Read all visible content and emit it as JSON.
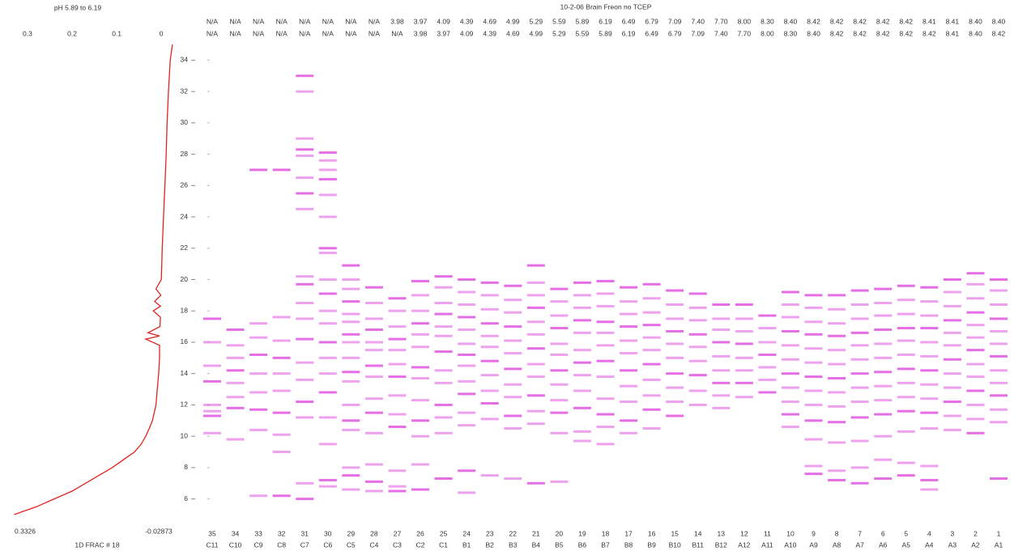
{
  "chart_data": [
    {
      "type": "line",
      "title": "pH 5.89 to 6.19",
      "xlabel": "1D FRAC # 18",
      "color": "#e0241f",
      "xlim": [
        0.3326,
        -0.02873
      ],
      "xticks": [
        0.3,
        0.2,
        0.1,
        0
      ],
      "ylim": [
        5,
        35
      ],
      "positions": [
        5,
        5.5,
        6,
        6.5,
        7,
        7.5,
        8,
        8.5,
        9,
        9.5,
        10,
        10.5,
        11,
        12,
        13,
        14,
        15,
        15.8,
        16.2,
        16.4,
        16.6,
        17,
        17.6,
        18,
        18.3,
        18.6,
        19,
        19.4,
        20,
        22,
        24,
        26,
        28,
        30,
        32,
        34,
        35
      ],
      "values": [
        0.33,
        0.28,
        0.24,
        0.2,
        0.17,
        0.14,
        0.11,
        0.085,
        0.06,
        0.045,
        0.035,
        0.027,
        0.02,
        0.012,
        0.009,
        0.006,
        0.004,
        0.004,
        0.035,
        0.004,
        0.03,
        0.003,
        0.002,
        0.018,
        0.002,
        0.015,
        0.001,
        0.012,
        0.0,
        -0.002,
        -0.005,
        -0.008,
        -0.011,
        -0.013,
        -0.016,
        -0.02,
        -0.025
      ]
    },
    {
      "type": "band-map",
      "title": "10-2-06 Brain Freon no TCEP",
      "color": "#e055e0",
      "ylim": [
        5,
        35
      ],
      "yticks": [
        6,
        8,
        10,
        12,
        14,
        16,
        18,
        20,
        22,
        24,
        26,
        28,
        30,
        32,
        34
      ],
      "lanes": [
        35,
        34,
        33,
        32,
        31,
        30,
        29,
        28,
        27,
        26,
        25,
        24,
        23,
        22,
        21,
        20,
        19,
        18,
        17,
        16,
        15,
        14,
        13,
        12,
        11,
        10,
        9,
        8,
        7,
        6,
        5,
        4,
        3,
        2,
        1
      ],
      "wells": [
        "C11",
        "C10",
        "C9",
        "C8",
        "C7",
        "C6",
        "C5",
        "C4",
        "C3",
        "C2",
        "C1",
        "B1",
        "B2",
        "B3",
        "B4",
        "B5",
        "B6",
        "B7",
        "B8",
        "B9",
        "B10",
        "B11",
        "B12",
        "A12",
        "A11",
        "A10",
        "A9",
        "A8",
        "A7",
        "A6",
        "A5",
        "A4",
        "A3",
        "A2",
        "A1"
      ],
      "ph_top": [
        "N/A",
        "N/A",
        "N/A",
        "N/A",
        "N/A",
        "N/A",
        "N/A",
        "N/A",
        "3.98",
        "3.97",
        "4.09",
        "4.39",
        "4.69",
        "4.99",
        "5.29",
        "5.59",
        "5.89",
        "6.19",
        "6.49",
        "6.79",
        "7.09",
        "7.40",
        "7.70",
        "8.00",
        "8.30",
        "8.40",
        "8.42",
        "8.42",
        "8.42",
        "8.42",
        "8.42",
        "8.41",
        "8.41",
        "8.40",
        "8.40"
      ],
      "ph_bottom": [
        "N/A",
        "N/A",
        "N/A",
        "N/A",
        "N/A",
        "N/A",
        "N/A",
        "N/A",
        "N/A",
        "3.98",
        "3.97",
        "4.09",
        "4.39",
        "4.69",
        "4.99",
        "5.29",
        "5.59",
        "5.89",
        "6.19",
        "6.49",
        "6.79",
        "7.09",
        "7.40",
        "7.70",
        "8.00",
        "8.30",
        "8.40",
        "8.42",
        "8.42",
        "8.42",
        "8.42",
        "8.42",
        "8.41",
        "8.40",
        "8.42"
      ],
      "bands": [
        [
          17.5,
          16,
          14.5,
          13.5,
          12,
          11.6,
          11.3,
          10.2
        ],
        [
          16.8,
          15.8,
          15,
          14.2,
          13.4,
          12.5,
          11.8,
          9.8
        ],
        [
          27,
          17.2,
          16.3,
          15.2,
          14,
          12.8,
          11.7,
          10.4,
          6.2
        ],
        [
          27,
          17.6,
          16.1,
          15,
          14,
          12.9,
          11.5,
          10.1,
          9,
          6.2
        ],
        [
          33,
          32,
          29,
          28.3,
          27.9,
          26.5,
          25.5,
          24.5,
          20.2,
          19.7,
          18.5,
          17.5,
          16.2,
          14.7,
          13.6,
          12.2,
          11.2,
          7,
          6
        ],
        [
          28.1,
          27.6,
          27,
          26.4,
          25.4,
          24,
          22,
          21.7,
          20,
          19.1,
          18,
          17.2,
          16,
          15,
          14,
          12.8,
          11.2,
          9.5,
          7.2,
          6.8
        ],
        [
          20.9,
          20,
          19.4,
          18.6,
          17.8,
          17.3,
          16.5,
          16,
          15,
          14.1,
          13.5,
          12,
          11,
          10.4,
          8,
          7.5,
          6.6
        ],
        [
          19.5,
          18.5,
          17.5,
          16.8,
          16,
          15.5,
          14.5,
          13.8,
          12.4,
          11.5,
          10.2,
          8.2,
          7.1,
          6.5
        ],
        [
          18.8,
          18,
          17,
          16.2,
          15.5,
          14.6,
          13.8,
          12.6,
          11.4,
          10.6,
          7.8,
          6.8,
          6.5
        ],
        [
          19.9,
          19,
          18,
          17.2,
          16.5,
          15.7,
          14.4,
          13.7,
          12.3,
          11,
          10,
          8.2,
          6.6
        ],
        [
          20.2,
          19.5,
          18.5,
          17.8,
          17,
          16.4,
          15.4,
          14.2,
          13.4,
          12,
          11.2,
          10.2,
          7.3
        ],
        [
          20,
          19.2,
          18.4,
          17.6,
          16.8,
          15.9,
          15.2,
          14.5,
          13.5,
          12.7,
          11.5,
          10.7,
          7.8,
          6.4
        ],
        [
          19.8,
          19,
          18.1,
          17.2,
          16.4,
          15.7,
          14.8,
          13.9,
          12.9,
          12.1,
          11.1,
          7.5
        ],
        [
          19.6,
          18.7,
          17.9,
          17,
          16.1,
          15.3,
          14.3,
          13.3,
          12.5,
          11.3,
          10.5,
          7.3
        ],
        [
          20.9,
          19.8,
          19,
          18.2,
          17.3,
          16.5,
          15.6,
          14.6,
          13.8,
          12.6,
          11.6,
          10.8,
          7
        ],
        [
          19.4,
          18.6,
          17.7,
          16.9,
          15.9,
          15.2,
          14.2,
          13.3,
          12.3,
          11.5,
          10.2,
          7.1
        ],
        [
          19.8,
          19,
          18.2,
          17.4,
          16.6,
          15.5,
          14.7,
          13.9,
          12.9,
          11.8,
          10.3,
          9.7
        ],
        [
          19.9,
          19.1,
          18.3,
          17.3,
          16.6,
          15.8,
          14.8,
          13.8,
          12.4,
          11.4,
          10.6,
          9.5
        ],
        [
          19.5,
          18.6,
          17.8,
          17,
          16.1,
          15.3,
          14.2,
          13.2,
          12.2,
          11,
          10.2
        ],
        [
          19.7,
          18.8,
          17.9,
          17.1,
          16.3,
          15.5,
          14.6,
          13.6,
          12.6,
          11.7,
          10.5
        ],
        [
          19.3,
          18.4,
          17.5,
          16.7,
          15.9,
          15,
          14,
          13.1,
          12.2,
          11.3
        ],
        [
          19.1,
          18.2,
          17.4,
          16.5,
          15.7,
          14.8,
          13.9,
          12.9,
          12
        ],
        [
          18.4,
          17.5,
          16.8,
          16,
          15.1,
          14.2,
          13.4,
          12.6,
          11.8
        ],
        [
          18.4,
          17.5,
          16.7,
          15.9,
          15,
          14.2,
          13.4,
          12.5
        ],
        [
          17.7,
          16.9,
          16,
          15.2,
          14.4,
          13.6,
          12.8
        ],
        [
          19.2,
          18.4,
          17.6,
          16.7,
          15.8,
          14.9,
          14,
          13.1,
          12.2,
          11.4,
          10.6
        ],
        [
          19,
          18.2,
          17.3,
          16.5,
          15.6,
          14.7,
          13.8,
          12.9,
          12,
          11,
          9.8,
          8.1,
          7.6
        ],
        [
          19,
          18.1,
          17.2,
          16.4,
          15.5,
          14.6,
          13.7,
          12.8,
          11.9,
          10.9,
          9.6,
          7.8,
          7.2
        ],
        [
          19.3,
          18.4,
          17.5,
          16.6,
          15.8,
          14.9,
          14,
          13.1,
          12.2,
          11.2,
          9.7,
          8,
          7
        ],
        [
          19.4,
          18.5,
          17.7,
          16.8,
          15.9,
          15,
          14.1,
          13.2,
          12.3,
          11.4,
          10,
          8.5,
          7.3
        ],
        [
          19.6,
          18.7,
          17.8,
          16.9,
          16.1,
          15.2,
          14.3,
          13.4,
          12.5,
          11.6,
          10.3,
          8.3,
          7.5
        ],
        [
          19.5,
          18.6,
          17.7,
          16.9,
          16,
          15.1,
          14.2,
          13.3,
          12.4,
          11.5,
          10.5,
          8.1,
          7.2,
          6.6
        ],
        [
          20,
          19.2,
          18.3,
          17.4,
          16.6,
          15.8,
          14.9,
          14,
          13.1,
          12.2,
          11.3,
          10.4
        ],
        [
          20.4,
          19.7,
          18.8,
          17.9,
          17.1,
          16.3,
          15.5,
          14.6,
          13.8,
          12.9,
          12,
          11.1,
          10.2
        ],
        [
          20,
          19.3,
          18.4,
          17.5,
          16.7,
          15.9,
          15.1,
          14.2,
          13.4,
          12.6,
          11.7,
          10.9,
          7.3
        ]
      ]
    }
  ]
}
